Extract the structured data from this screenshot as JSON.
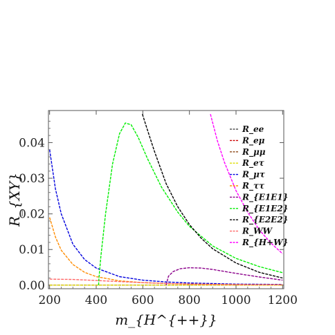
{
  "chart_data": {
    "type": "line",
    "title": "",
    "xlabel": "m_{H^{++}}",
    "ylabel": "R_{XY}",
    "xlim": [
      195,
      1205
    ],
    "ylim": [
      -0.001,
      0.049
    ],
    "x_ticks": [
      200,
      400,
      600,
      800,
      1000,
      1200
    ],
    "x_tick_labels": [
      "200",
      "400",
      "600",
      "800",
      "1000",
      "1200"
    ],
    "y_ticks": [
      0.0,
      0.01,
      0.02,
      0.03,
      0.04
    ],
    "y_tick_labels": [
      "0.00",
      "0.01",
      "0.02",
      "0.03",
      "0.04"
    ],
    "grid": false,
    "legend_position": "top-right",
    "series": [
      {
        "name": "R_ee",
        "color": "#555555",
        "x": [
          200,
          400,
          600,
          800,
          1000,
          1200
        ],
        "y": [
          0,
          0,
          0,
          0,
          0,
          0
        ]
      },
      {
        "name": "R_eμ",
        "color": "#cc0000",
        "x": [
          200,
          400,
          600,
          800,
          1000,
          1200
        ],
        "y": [
          0,
          0,
          0,
          0,
          0,
          0
        ]
      },
      {
        "name": "R_μμ",
        "color": "#8b4513",
        "x": [
          200,
          400,
          600,
          800,
          1000,
          1200
        ],
        "y": [
          0,
          0,
          0,
          0,
          0,
          0
        ]
      },
      {
        "name": "R_eτ",
        "color": "#dddd00",
        "x": [
          200,
          400,
          600,
          800,
          1000,
          1200
        ],
        "y": [
          0,
          0,
          0,
          0,
          0,
          0
        ]
      },
      {
        "name": "R_μτ",
        "color": "#0000dd",
        "x": [
          200,
          225,
          250,
          300,
          350,
          400,
          500,
          600,
          700,
          800,
          1000,
          1200
        ],
        "y": [
          0.038,
          0.027,
          0.02,
          0.0115,
          0.0072,
          0.0048,
          0.0024,
          0.0014,
          0.0009,
          0.0006,
          0.0003,
          0.0002
        ]
      },
      {
        "name": "R_ττ",
        "color": "#ff8c00",
        "x": [
          200,
          225,
          250,
          300,
          350,
          400,
          500,
          600,
          700,
          800,
          1000,
          1200
        ],
        "y": [
          0.019,
          0.0135,
          0.0098,
          0.0058,
          0.0036,
          0.0024,
          0.0012,
          0.0007,
          0.00045,
          0.0003,
          0.00015,
          0.0001
        ]
      },
      {
        "name": "R_{E1E1}",
        "color": "#8b008b",
        "x": [
          700,
          710,
          730,
          760,
          800,
          850,
          900,
          1000,
          1100,
          1200
        ],
        "y": [
          0.0,
          0.0025,
          0.0038,
          0.0046,
          0.0049,
          0.0048,
          0.0044,
          0.0033,
          0.0023,
          0.0014
        ]
      },
      {
        "name": "R_{E1E2}",
        "color": "#00ee00",
        "x": [
          410,
          412,
          420,
          440,
          470,
          500,
          525,
          550,
          580,
          620,
          680,
          750,
          800,
          900,
          1000,
          1100,
          1200
        ],
        "y": [
          0.0,
          0.002,
          0.008,
          0.02,
          0.034,
          0.0425,
          0.0455,
          0.045,
          0.0415,
          0.0355,
          0.0275,
          0.0205,
          0.0165,
          0.011,
          0.0075,
          0.0052,
          0.0035
        ]
      },
      {
        "name": "R_{E2E2}",
        "color": "#000000",
        "x": [
          598,
          620,
          650,
          700,
          750,
          800,
          850,
          900,
          1000,
          1100,
          1200
        ],
        "y": [
          0.048,
          0.0435,
          0.0375,
          0.0285,
          0.022,
          0.017,
          0.0132,
          0.0102,
          0.0062,
          0.0036,
          0.002
        ]
      },
      {
        "name": "R_WW",
        "color": "#ff6666",
        "x": [
          200,
          300,
          400,
          500,
          600,
          700,
          800,
          1000,
          1200
        ],
        "y": [
          0.0017,
          0.0016,
          0.0013,
          0.001,
          0.0007,
          0.0005,
          0.0003,
          0.00015,
          0.0001
        ]
      },
      {
        "name": "R_{H+W}",
        "color": "#ff00ff",
        "x": [
          890,
          920,
          950,
          1000,
          1050,
          1100,
          1150,
          1200
        ],
        "y": [
          0.048,
          0.0405,
          0.0345,
          0.0265,
          0.0205,
          0.0155,
          0.0118,
          0.0088
        ]
      }
    ]
  }
}
